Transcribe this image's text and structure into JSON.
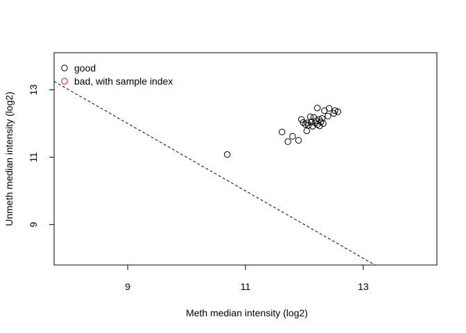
{
  "chart_data": {
    "type": "scatter",
    "title": "",
    "xlabel": "Meth median intensity (log2)",
    "ylabel": "Unmeth median intensity (log2)",
    "xlim": [
      7.75,
      14.25
    ],
    "ylim": [
      7.8,
      14.1
    ],
    "xticks": [
      9,
      11,
      13
    ],
    "yticks": [
      9,
      11,
      13
    ],
    "legend": {
      "position": "top-left",
      "entries": [
        {
          "label": "good",
          "color": "#000000"
        },
        {
          "label": "bad, with sample index",
          "color": "#ff0000"
        }
      ]
    },
    "series": [
      {
        "name": "good",
        "color": "#000000",
        "points": [
          [
            10.69,
            11.08
          ],
          [
            11.62,
            11.75
          ],
          [
            11.72,
            11.46
          ],
          [
            11.8,
            11.62
          ],
          [
            11.9,
            11.5
          ],
          [
            11.95,
            12.12
          ],
          [
            11.98,
            12.03
          ],
          [
            12.02,
            11.97
          ],
          [
            12.04,
            11.78
          ],
          [
            12.05,
            12.02
          ],
          [
            12.07,
            11.95
          ],
          [
            12.1,
            12.2
          ],
          [
            12.12,
            12.05
          ],
          [
            12.14,
            11.92
          ],
          [
            12.16,
            12.18
          ],
          [
            12.18,
            12.02
          ],
          [
            12.2,
            12.08
          ],
          [
            12.22,
            11.97
          ],
          [
            12.22,
            12.46
          ],
          [
            12.25,
            12.12
          ],
          [
            12.26,
            11.93
          ],
          [
            12.28,
            12.05
          ],
          [
            12.3,
            12.15
          ],
          [
            12.32,
            12.0
          ],
          [
            12.34,
            12.38
          ],
          [
            12.4,
            12.22
          ],
          [
            12.42,
            12.45
          ],
          [
            12.5,
            12.3
          ],
          [
            12.52,
            12.38
          ],
          [
            12.57,
            12.35
          ]
        ]
      },
      {
        "name": "bad, with sample index",
        "color": "#ff0000",
        "points": []
      }
    ],
    "reference_line": {
      "style": "dashed",
      "intercept": 21.0,
      "slope": -1
    }
  }
}
